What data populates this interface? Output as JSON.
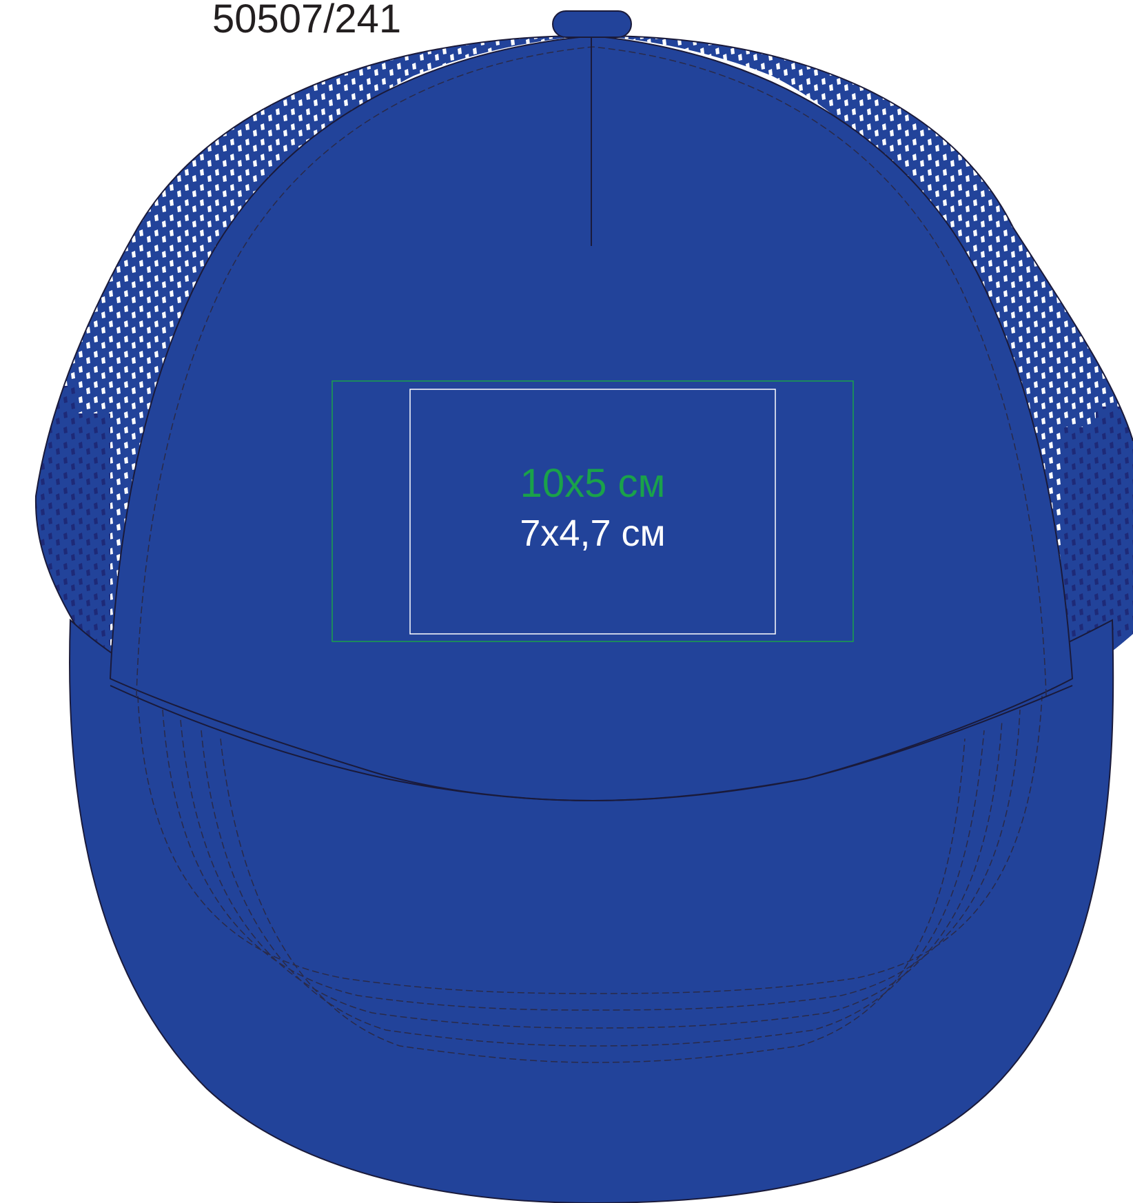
{
  "article_code": "50507/241",
  "print_area": {
    "outer_size": "10x5 см",
    "inner_size": "7x4,7 см"
  },
  "colors": {
    "cap_blue": "#22439a",
    "mesh_dark": "#1e2f7a",
    "mesh_hole": "#ffffff",
    "outline": "#1a1a3a",
    "outer_area_stroke": "#1aa24a",
    "outer_area_text": "#1aa24a",
    "inner_area_stroke": "#ffffff",
    "code_text": "#231f20"
  }
}
